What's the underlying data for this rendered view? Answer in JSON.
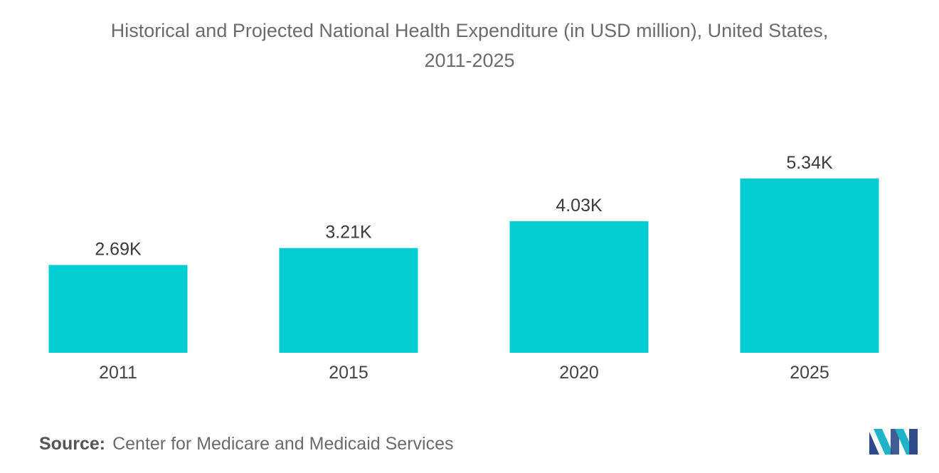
{
  "chart_data": {
    "type": "bar",
    "title_line1": "Historical and Projected National Health Expenditure (in USD million), United States,",
    "title_line2": "2011-2025",
    "categories": [
      "2011",
      "2015",
      "2020",
      "2025"
    ],
    "values": [
      2690,
      3210,
      4030,
      5340
    ],
    "value_labels": [
      "2.69K",
      "3.21K",
      "4.03K",
      "5.34K"
    ],
    "xlabel": "",
    "ylabel": "",
    "ylim": [
      0,
      6000
    ],
    "grid": false,
    "bar_color": "#00CDD0"
  },
  "source": {
    "label": "Source:",
    "text": "Center for Medicare and Medicaid Services"
  },
  "logo": {
    "icon": "mordor-intelligence-logo",
    "colors": [
      "#2E4A8A",
      "#1FB3C8"
    ]
  }
}
